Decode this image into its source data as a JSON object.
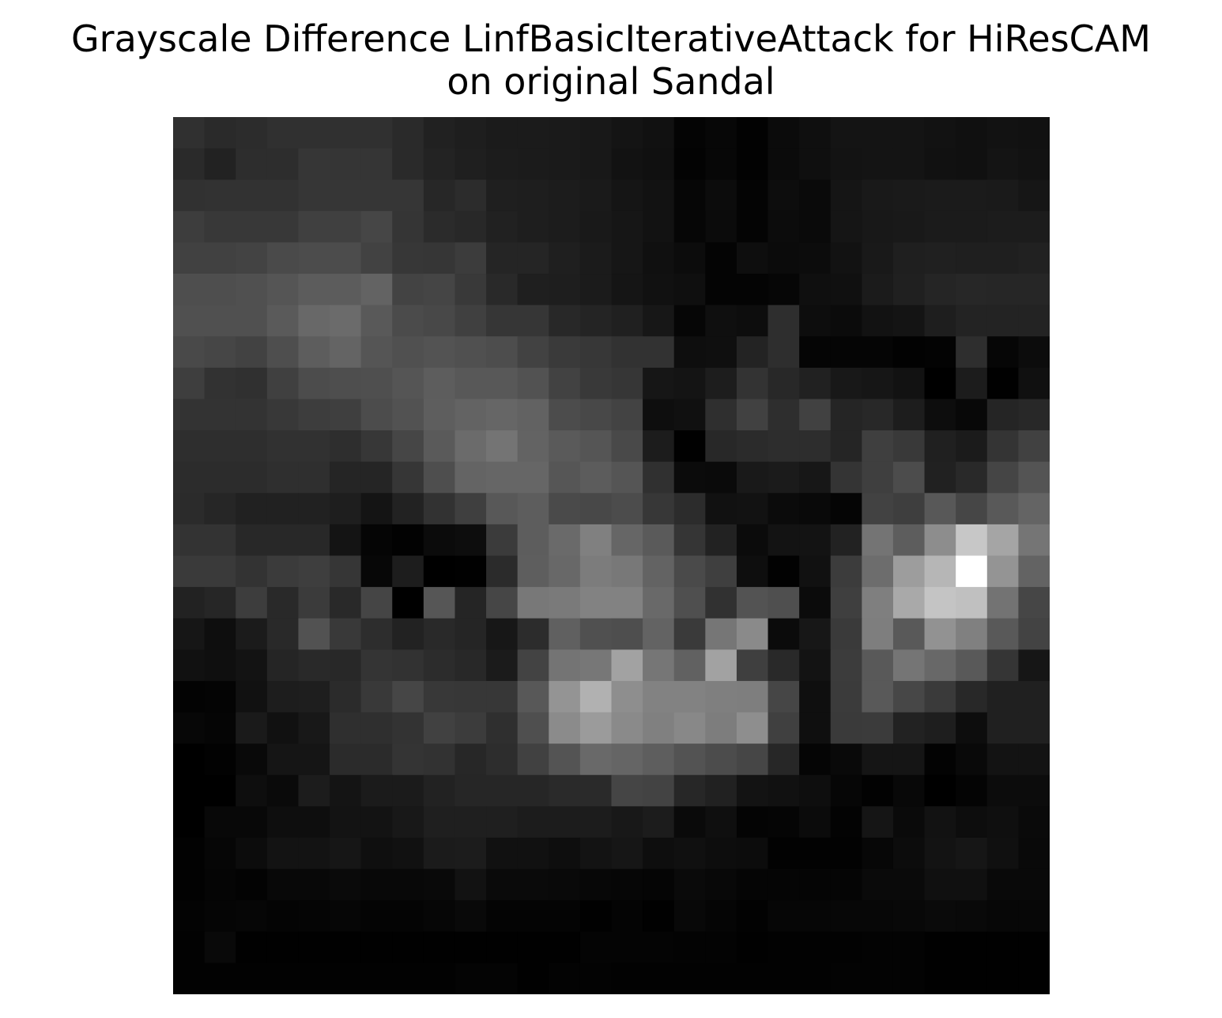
{
  "chart_data": {
    "type": "heatmap",
    "title": "Grayscale Difference LinfBasicIterativeAttack for HiResCAM\non original Sandal",
    "colormap": "gray",
    "axes_visible": false,
    "value_range": [
      0,
      255
    ],
    "rows": 28,
    "cols": 28,
    "values": [
      [
        48,
        42,
        44,
        48,
        48,
        48,
        48,
        42,
        33,
        30,
        27,
        27,
        26,
        24,
        20,
        17,
        4,
        7,
        2,
        11,
        15,
        20,
        20,
        20,
        18,
        16,
        18,
        17
      ],
      [
        42,
        34,
        45,
        45,
        54,
        53,
        53,
        42,
        35,
        31,
        28,
        27,
        26,
        24,
        18,
        16,
        3,
        7,
        2,
        11,
        15,
        19,
        20,
        20,
        17,
        16,
        20,
        18
      ],
      [
        49,
        50,
        50,
        50,
        54,
        54,
        54,
        54,
        39,
        44,
        31,
        30,
        28,
        26,
        21,
        18,
        6,
        12,
        4,
        13,
        10,
        21,
        25,
        26,
        27,
        27,
        26,
        22
      ],
      [
        61,
        56,
        56,
        56,
        64,
        64,
        70,
        53,
        43,
        40,
        33,
        30,
        28,
        25,
        22,
        18,
        6,
        11,
        4,
        12,
        10,
        21,
        24,
        25,
        27,
        27,
        28,
        28
      ],
      [
        65,
        65,
        67,
        74,
        76,
        76,
        66,
        55,
        54,
        60,
        37,
        37,
        31,
        27,
        22,
        16,
        12,
        4,
        14,
        11,
        12,
        18,
        25,
        31,
        32,
        31,
        31,
        33
      ],
      [
        78,
        78,
        80,
        85,
        92,
        92,
        99,
        67,
        69,
        57,
        41,
        31,
        30,
        27,
        21,
        17,
        15,
        4,
        4,
        6,
        15,
        16,
        27,
        32,
        37,
        39,
        38,
        38
      ],
      [
        80,
        80,
        80,
        90,
        104,
        107,
        89,
        75,
        72,
        64,
        54,
        54,
        40,
        36,
        32,
        23,
        6,
        15,
        13,
        46,
        13,
        11,
        18,
        20,
        30,
        35,
        35,
        35
      ],
      [
        73,
        70,
        66,
        78,
        93,
        100,
        85,
        80,
        83,
        80,
        77,
        66,
        58,
        55,
        50,
        50,
        14,
        15,
        35,
        46,
        5,
        5,
        5,
        2,
        3,
        46,
        6,
        12
      ],
      [
        62,
        50,
        48,
        64,
        76,
        78,
        79,
        85,
        93,
        88,
        88,
        82,
        66,
        57,
        54,
        22,
        20,
        29,
        51,
        40,
        33,
        24,
        22,
        18,
        0,
        28,
        1,
        16
      ],
      [
        51,
        51,
        51,
        56,
        61,
        63,
        76,
        82,
        94,
        99,
        102,
        98,
        76,
        72,
        67,
        14,
        16,
        47,
        65,
        46,
        65,
        37,
        40,
        29,
        13,
        8,
        37,
        40
      ],
      [
        46,
        46,
        46,
        49,
        49,
        46,
        55,
        70,
        90,
        107,
        116,
        99,
        90,
        85,
        73,
        28,
        1,
        40,
        43,
        45,
        45,
        37,
        63,
        57,
        32,
        27,
        52,
        65
      ],
      [
        44,
        44,
        44,
        47,
        47,
        37,
        37,
        54,
        78,
        100,
        102,
        102,
        86,
        92,
        85,
        48,
        11,
        10,
        25,
        27,
        23,
        52,
        63,
        76,
        33,
        41,
        69,
        84
      ],
      [
        43,
        38,
        33,
        33,
        33,
        30,
        20,
        34,
        50,
        63,
        88,
        93,
        74,
        72,
        76,
        55,
        44,
        17,
        18,
        11,
        9,
        5,
        66,
        62,
        88,
        70,
        89,
        100
      ],
      [
        51,
        51,
        40,
        40,
        40,
        20,
        5,
        2,
        11,
        13,
        59,
        93,
        106,
        128,
        102,
        90,
        53,
        34,
        11,
        19,
        19,
        34,
        116,
        93,
        141,
        199,
        165,
        117
      ],
      [
        58,
        58,
        51,
        59,
        62,
        54,
        7,
        29,
        0,
        1,
        43,
        94,
        104,
        124,
        120,
        99,
        74,
        63,
        14,
        2,
        17,
        60,
        109,
        157,
        182,
        255,
        148,
        99
      ],
      [
        34,
        38,
        61,
        41,
        59,
        41,
        69,
        0,
        86,
        37,
        70,
        120,
        122,
        130,
        130,
        105,
        79,
        49,
        83,
        79,
        11,
        63,
        127,
        169,
        196,
        192,
        115,
        70
      ],
      [
        22,
        14,
        27,
        41,
        82,
        57,
        45,
        34,
        41,
        37,
        23,
        44,
        96,
        80,
        78,
        99,
        58,
        118,
        138,
        11,
        23,
        58,
        126,
        89,
        146,
        128,
        89,
        67
      ],
      [
        17,
        15,
        19,
        37,
        41,
        40,
        52,
        50,
        44,
        40,
        27,
        67,
        116,
        119,
        162,
        118,
        97,
        162,
        63,
        41,
        19,
        60,
        89,
        117,
        104,
        89,
        53,
        22
      ],
      [
        3,
        4,
        17,
        29,
        30,
        43,
        57,
        70,
        56,
        55,
        55,
        88,
        148,
        177,
        142,
        130,
        130,
        127,
        126,
        70,
        15,
        59,
        89,
        71,
        58,
        40,
        32,
        32
      ],
      [
        7,
        5,
        26,
        17,
        24,
        47,
        47,
        51,
        65,
        60,
        47,
        79,
        139,
        155,
        138,
        128,
        136,
        125,
        142,
        64,
        15,
        58,
        59,
        34,
        30,
        13,
        32,
        32
      ],
      [
        0,
        2,
        9,
        21,
        21,
        43,
        43,
        52,
        50,
        39,
        45,
        65,
        84,
        105,
        101,
        94,
        83,
        76,
        70,
        39,
        5,
        9,
        21,
        21,
        3,
        9,
        19,
        19
      ],
      [
        0,
        0,
        14,
        10,
        28,
        20,
        27,
        27,
        34,
        38,
        38,
        38,
        42,
        42,
        69,
        67,
        39,
        33,
        19,
        17,
        14,
        6,
        2,
        8,
        0,
        4,
        12,
        12
      ],
      [
        0,
        8,
        8,
        14,
        14,
        19,
        19,
        24,
        31,
        31,
        31,
        28,
        28,
        28,
        24,
        28,
        10,
        15,
        4,
        5,
        11,
        3,
        21,
        10,
        18,
        13,
        15,
        10
      ],
      [
        2,
        6,
        12,
        19,
        19,
        22,
        15,
        17,
        27,
        28,
        17,
        17,
        14,
        19,
        22,
        14,
        16,
        13,
        12,
        2,
        2,
        2,
        7,
        12,
        19,
        22,
        16,
        9
      ],
      [
        2,
        5,
        3,
        8,
        8,
        10,
        8,
        8,
        9,
        18,
        10,
        10,
        9,
        7,
        6,
        5,
        10,
        8,
        5,
        5,
        5,
        5,
        10,
        10,
        16,
        16,
        9,
        9
      ],
      [
        3,
        5,
        6,
        4,
        5,
        6,
        4,
        4,
        6,
        9,
        4,
        4,
        4,
        1,
        4,
        1,
        8,
        5,
        2,
        6,
        6,
        7,
        7,
        8,
        10,
        9,
        7,
        7
      ],
      [
        2,
        9,
        1,
        1,
        1,
        1,
        1,
        1,
        1,
        1,
        1,
        1,
        1,
        4,
        4,
        4,
        3,
        3,
        1,
        2,
        2,
        2,
        3,
        3,
        1,
        1,
        1,
        1
      ],
      [
        2,
        2,
        2,
        2,
        2,
        2,
        2,
        2,
        2,
        4,
        4,
        1,
        3,
        3,
        2,
        2,
        2,
        2,
        2,
        2,
        2,
        3,
        3,
        3,
        1,
        1,
        1,
        1
      ]
    ]
  }
}
